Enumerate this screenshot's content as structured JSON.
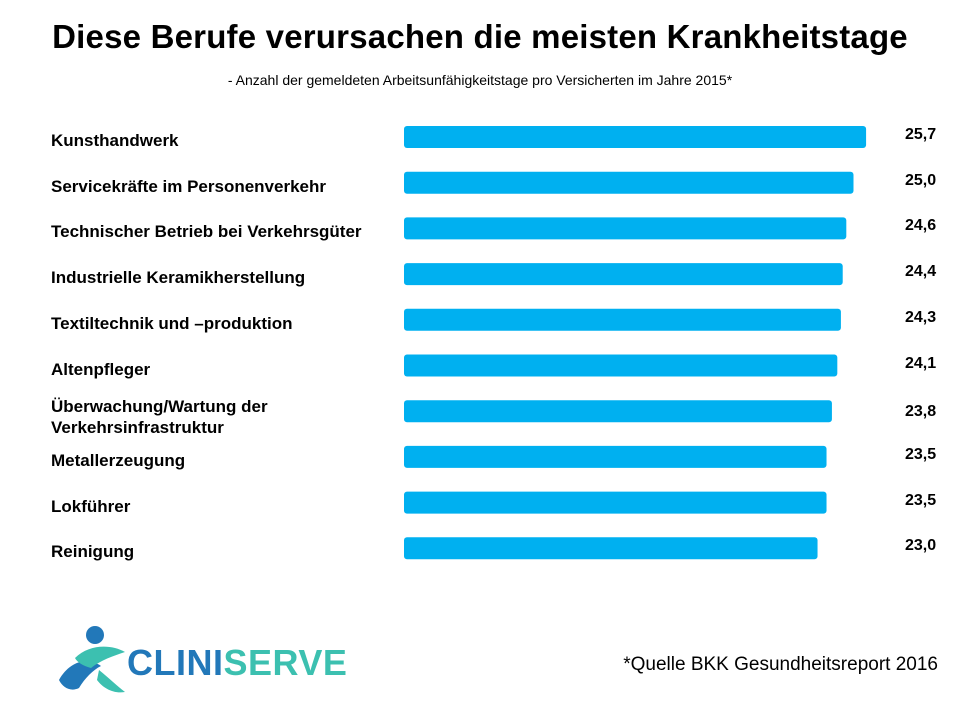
{
  "chart_data": {
    "type": "bar",
    "orientation": "horizontal",
    "title": "Diese Berufe verursachen die meisten Krankheitstage",
    "subtitle": "- Anzahl  der gemeldeten Arbeitsunfähigkeitstage  pro Versicherten  im Jahre 2015*",
    "categories": [
      "Kunsthandwerk",
      "Servicekräfte im Personenverkehr",
      "Technischer Betrieb bei Verkehrsgüter",
      "Industrielle Keramikherstellung",
      "Textiltechnik und –produktion",
      "Altenpfleger",
      "Überwachung/Wartung der Verkehrsinfrastruktur",
      "Metallerzeugung",
      "Lokführer",
      "Reinigung"
    ],
    "values": [
      25.7,
      25.0,
      24.6,
      24.4,
      24.3,
      24.1,
      23.8,
      23.5,
      23.5,
      23.0
    ],
    "value_labels": [
      "25,7",
      "25,0",
      "24,6",
      "24,4",
      "24,3",
      "24,1",
      "23,8",
      "23,5",
      "23,5",
      "23,0"
    ],
    "bar_color": "#00b0f0",
    "legend": "none",
    "grid": false
  },
  "logo": {
    "part1": "CLINI",
    "part2": "SERVE",
    "color1": "#2278b9",
    "color2": "#3cc0b0"
  },
  "source_note": "*Quelle  BKK Gesundheitsreport  2016"
}
